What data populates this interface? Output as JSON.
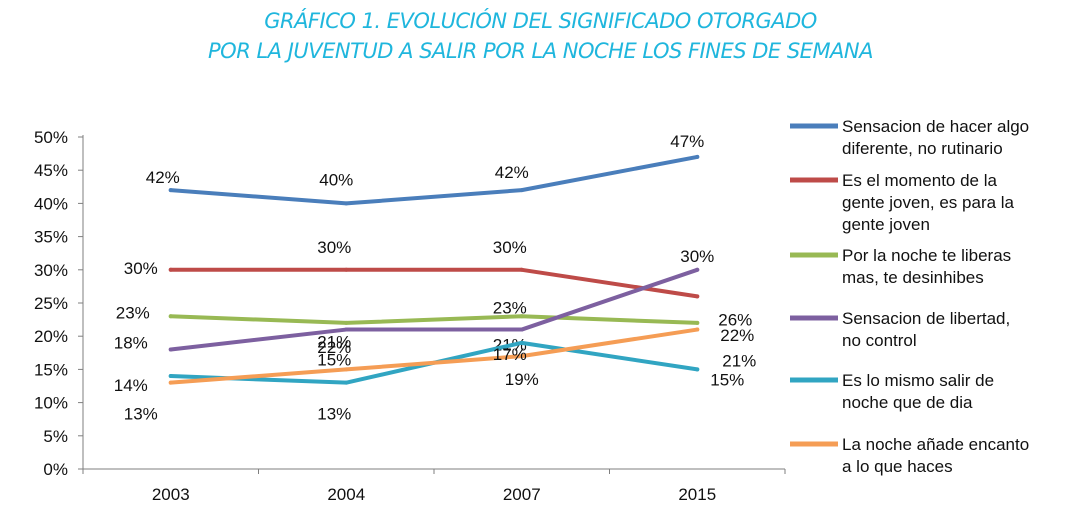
{
  "title_line1": "GRÁFICO 1. EVOLUCIÓN DEL SIGNIFICADO OTORGADO",
  "title_line2": "POR LA JUVENTUD A SALIR POR LA NOCHE LOS FINES DE SEMANA",
  "colors": {
    "title": "#1fb6dd"
  },
  "chart_data": {
    "type": "line",
    "categories": [
      "2003",
      "2004",
      "2007",
      "2015"
    ],
    "ylim": [
      0,
      50
    ],
    "yticks": [
      "0%",
      "5%",
      "10%",
      "15%",
      "20%",
      "25%",
      "30%",
      "35%",
      "40%",
      "45%",
      "50%"
    ],
    "grid": false,
    "legend_position": "right",
    "series": [
      {
        "name": "Sensacion de hacer algo diferente, no rutinario",
        "legend_lines": [
          "Sensacion de hacer algo",
          "diferente, no rutinario"
        ],
        "color": "#4a7ebb",
        "values": [
          42,
          40,
          42,
          47
        ],
        "labels": [
          "42%",
          "40%",
          "42%",
          "47%"
        ]
      },
      {
        "name": "Es el momento de la gente joven, es para la gente joven",
        "legend_lines": [
          "Es el momento de la",
          "gente joven, es para la",
          "gente joven"
        ],
        "color": "#be4b48",
        "values": [
          30,
          30,
          30,
          26
        ],
        "labels": [
          "30%",
          "30%",
          "30%",
          "26%"
        ]
      },
      {
        "name": "Por la noche te liberas mas, te desinhibes",
        "legend_lines": [
          "Por la noche te liberas",
          "mas, te desinhibes"
        ],
        "color": "#98b954",
        "values": [
          23,
          22,
          23,
          22
        ],
        "labels": [
          "23%",
          "22%",
          "23%",
          "22%"
        ]
      },
      {
        "name": "Sensacion de libertad, no control",
        "legend_lines": [
          "Sensacion de libertad,",
          "no control"
        ],
        "color": "#7d60a0",
        "values": [
          18,
          21,
          21,
          30
        ],
        "labels": [
          "18%",
          "21%",
          "21%",
          "30%"
        ]
      },
      {
        "name": "Es lo mismo salir de noche que de dia",
        "legend_lines": [
          "Es lo mismo salir de",
          "noche que de dia"
        ],
        "color": "#31a5c2",
        "values": [
          14,
          13,
          19,
          15
        ],
        "labels": [
          "14%",
          "13%",
          "19%",
          "15%"
        ]
      },
      {
        "name": "La noche añade encanto a lo que haces",
        "legend_lines": [
          "La noche añade encanto",
          "a lo que haces"
        ],
        "color": "#f59d55",
        "values": [
          13,
          15,
          17,
          21
        ],
        "labels": [
          "13%",
          "15%",
          "17%",
          "21%"
        ]
      }
    ]
  }
}
